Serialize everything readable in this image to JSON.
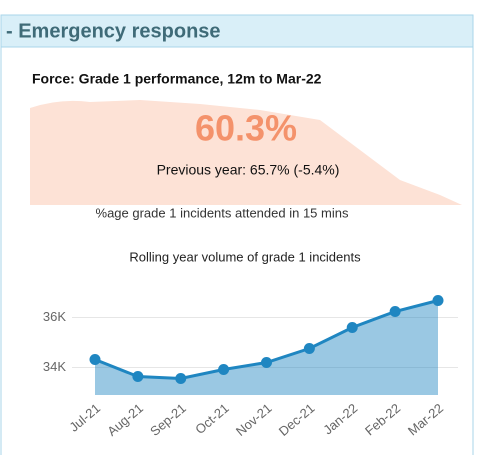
{
  "header": {
    "title": "- Emergency response"
  },
  "kpi": {
    "title": "Force: Grade 1 performance, 12m to Mar-22",
    "value": "60.3%",
    "previous": "Previous year: 65.7% (-5.4%)",
    "caption": "%age grade 1 incidents attended in 15 mins"
  },
  "chart_data": {
    "type": "area",
    "title": "Rolling year volume of grade 1 incidents",
    "categories": [
      "Jul-21",
      "Aug-21",
      "Sep-21",
      "Oct-21",
      "Nov-21",
      "Dec-21",
      "Jan-22",
      "Feb-22",
      "Mar-22"
    ],
    "values": [
      34320,
      33640,
      33560,
      33920,
      34200,
      34760,
      35600,
      36240,
      36680
    ],
    "color": "#1f86c1",
    "ylim": [
      32900,
      37500
    ],
    "yticks": [
      {
        "value": 34000,
        "label": "34K"
      },
      {
        "value": 36000,
        "label": "36K"
      }
    ],
    "grid": true
  }
}
